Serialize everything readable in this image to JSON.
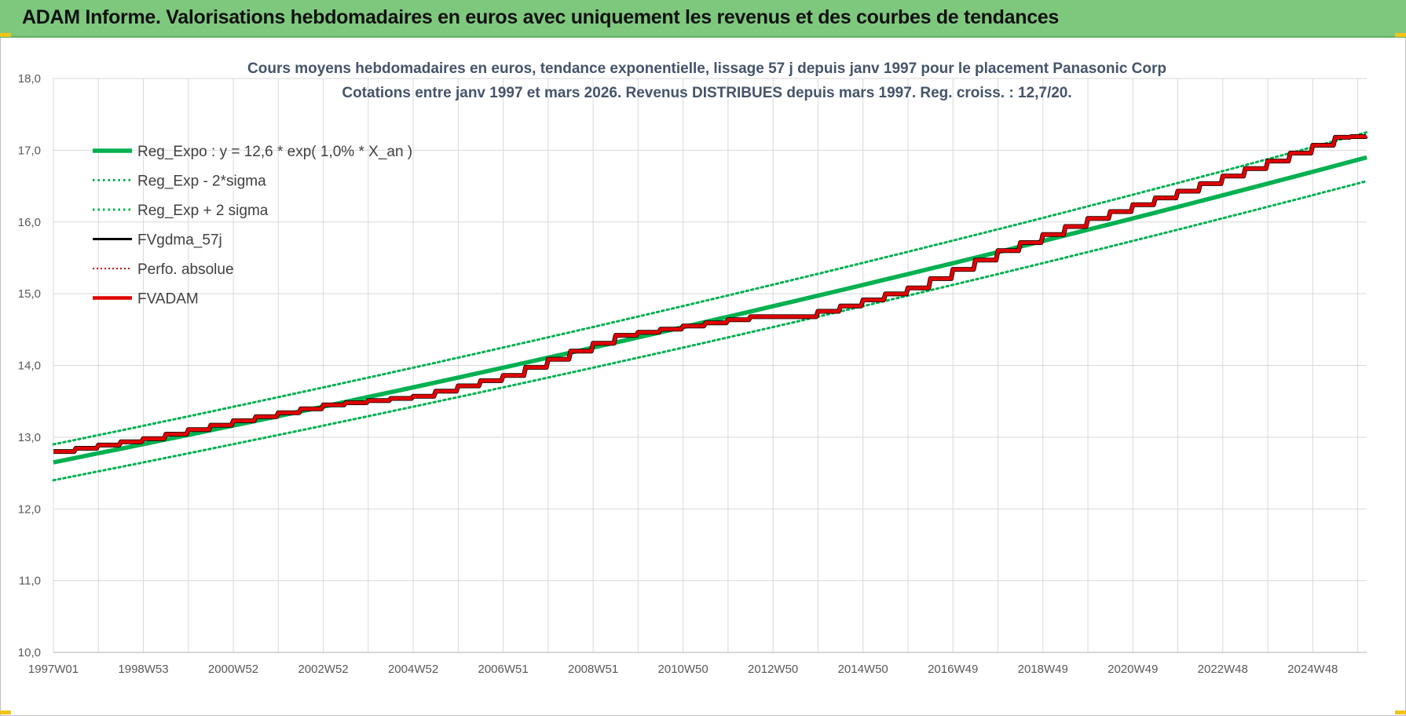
{
  "header": {
    "title": "ADAM Informe. Valorisations hebdomadaires en euros avec uniquement les revenus et des courbes de tendances"
  },
  "chart_data": {
    "type": "line",
    "title_line1": "Cours moyens hebdomadaires en euros, tendance exponentielle, lissage 57 j depuis janv 1997  pour le placement Panasonic Corp",
    "title_line2": "Cotations entre janv 1997 et mars 2026. Revenus DISTRIBUES depuis mars 1997. Reg. croiss. : 12,7/20.",
    "x_tick_labels": [
      "1997W01",
      "1998W53",
      "2000W52",
      "2002W52",
      "2004W52",
      "2006W51",
      "2008W51",
      "2010W50",
      "2012W50",
      "2014W50",
      "2016W49",
      "2018W49",
      "2020W49",
      "2022W48",
      "2024W48"
    ],
    "x_range_years": [
      1997.0,
      2026.2
    ],
    "ylim": [
      10,
      18
    ],
    "y_tick_labels": [
      "10,0",
      "11,0",
      "12,0",
      "13,0",
      "14,0",
      "15,0",
      "16,0",
      "17,0",
      "18,0"
    ],
    "grid": true,
    "legend_position": "top-left",
    "series": [
      {
        "name": "Reg_Expo : y = 12,6 * exp( 1,0% *  X_an )",
        "color": "#00b050",
        "style": "solid-thick",
        "x": [
          1997.0,
          2026.2
        ],
        "y": [
          12.65,
          16.9
        ]
      },
      {
        "name": "Reg_Exp - 2*sigma",
        "color": "#00b050",
        "style": "dotted",
        "x": [
          1997.0,
          2026.2
        ],
        "y": [
          12.4,
          16.57
        ]
      },
      {
        "name": "Reg_Exp + 2 sigma",
        "color": "#00b050",
        "style": "dotted",
        "x": [
          1997.0,
          2026.2
        ],
        "y": [
          12.9,
          17.25
        ]
      },
      {
        "name": "FVgdma_57j",
        "color": "#000000",
        "style": "solid",
        "x": [
          1997.0,
          1999.0,
          2001.0,
          2003.0,
          2005.0,
          2007.0,
          2008.5,
          2009.5,
          2011.0,
          2012.5,
          2013.5,
          2014.5,
          2016.0,
          2018.0,
          2020.0,
          2022.0,
          2024.0,
          2025.5,
          2026.2
        ],
        "y": [
          12.8,
          12.98,
          13.23,
          13.45,
          13.57,
          13.86,
          14.2,
          14.42,
          14.55,
          14.68,
          14.68,
          14.83,
          15.08,
          15.6,
          16.05,
          16.43,
          16.85,
          17.18,
          17.2
        ]
      },
      {
        "name": "Perfo. absolue",
        "color": "#c00000",
        "style": "dotted",
        "x": [
          1997.0,
          1999.0,
          2001.0,
          2003.0,
          2005.0,
          2007.0,
          2008.5,
          2009.5,
          2011.0,
          2012.5,
          2013.5,
          2014.5,
          2016.0,
          2018.0,
          2020.0,
          2022.0,
          2024.0,
          2025.5,
          2026.2
        ],
        "y": [
          12.8,
          12.98,
          13.23,
          13.45,
          13.57,
          13.86,
          14.2,
          14.42,
          14.55,
          14.68,
          14.68,
          14.83,
          15.08,
          15.6,
          16.05,
          16.43,
          16.85,
          17.18,
          17.2
        ]
      },
      {
        "name": "FVADAM",
        "color": "#e00000",
        "style": "solid-thick-step",
        "x": [
          1997.0,
          1999.0,
          2001.0,
          2003.0,
          2005.0,
          2007.0,
          2008.5,
          2009.5,
          2011.0,
          2012.5,
          2013.5,
          2014.5,
          2016.0,
          2018.0,
          2020.0,
          2022.0,
          2024.0,
          2025.5,
          2026.2
        ],
        "y": [
          12.8,
          12.98,
          13.23,
          13.45,
          13.57,
          13.86,
          14.2,
          14.42,
          14.55,
          14.68,
          14.68,
          14.83,
          15.08,
          15.6,
          16.05,
          16.43,
          16.85,
          17.18,
          17.2
        ]
      }
    ]
  }
}
